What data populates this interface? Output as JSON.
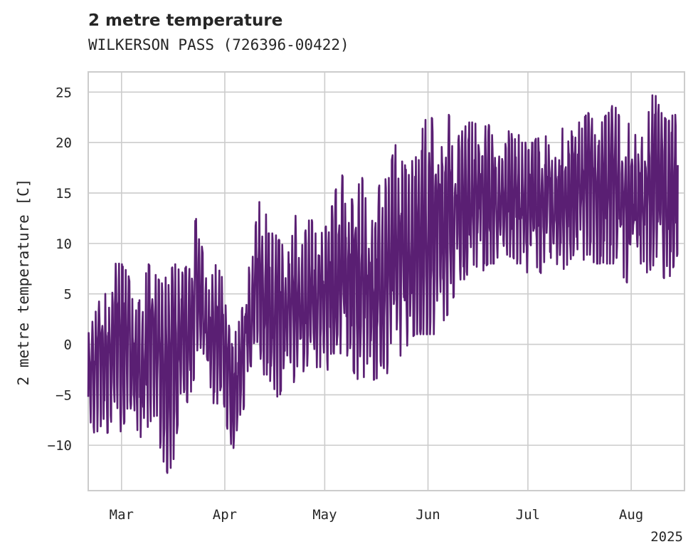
{
  "chart_data": {
    "type": "line",
    "title": "2 metre temperature",
    "subtitle": "WILKERSON PASS (726396-00422)",
    "ylabel": "2 metre temperature [C]",
    "xlabel": "",
    "x_year_label": "2025",
    "ylim": [
      -14.5,
      27
    ],
    "yticks": [
      -10,
      -5,
      0,
      5,
      10,
      15,
      20,
      25
    ],
    "xlim": [
      "2025-02-19",
      "2025-08-17"
    ],
    "xticks": [
      {
        "date": "2025-03-01",
        "label": "Mar"
      },
      {
        "date": "2025-04-01",
        "label": "Apr"
      },
      {
        "date": "2025-05-01",
        "label": "May"
      },
      {
        "date": "2025-06-01",
        "label": "Jun"
      },
      {
        "date": "2025-07-01",
        "label": "Jul"
      },
      {
        "date": "2025-08-01",
        "label": "Aug"
      }
    ],
    "grid": true,
    "line_color": "#5a1f73",
    "series": [
      {
        "name": "",
        "x": [
          "2025-02-19",
          "2025-02-21",
          "2025-02-23",
          "2025-02-25",
          "2025-02-27",
          "2025-03-01",
          "2025-03-03",
          "2025-03-05",
          "2025-03-07",
          "2025-03-09",
          "2025-03-11",
          "2025-03-13",
          "2025-03-15",
          "2025-03-17",
          "2025-03-19",
          "2025-03-21",
          "2025-03-23",
          "2025-03-25",
          "2025-03-27",
          "2025-03-29",
          "2025-03-31",
          "2025-04-02",
          "2025-04-04",
          "2025-04-06",
          "2025-04-08",
          "2025-04-10",
          "2025-04-12",
          "2025-04-14",
          "2025-04-16",
          "2025-04-18",
          "2025-04-20",
          "2025-04-22",
          "2025-04-24",
          "2025-04-26",
          "2025-04-28",
          "2025-04-30",
          "2025-05-02",
          "2025-05-04",
          "2025-05-06",
          "2025-05-08",
          "2025-05-10",
          "2025-05-12",
          "2025-05-14",
          "2025-05-16",
          "2025-05-18",
          "2025-05-20",
          "2025-05-22",
          "2025-05-24",
          "2025-05-26",
          "2025-05-28",
          "2025-05-30",
          "2025-06-01",
          "2025-06-03",
          "2025-06-05",
          "2025-06-07",
          "2025-06-09",
          "2025-06-11",
          "2025-06-13",
          "2025-06-15",
          "2025-06-17",
          "2025-06-19",
          "2025-06-21",
          "2025-06-23",
          "2025-06-25",
          "2025-06-27",
          "2025-06-29",
          "2025-07-01",
          "2025-07-03",
          "2025-07-05",
          "2025-07-07",
          "2025-07-09",
          "2025-07-11",
          "2025-07-13",
          "2025-07-15",
          "2025-07-17",
          "2025-07-19",
          "2025-07-21",
          "2025-07-23",
          "2025-07-25",
          "2025-07-27",
          "2025-07-29",
          "2025-07-31",
          "2025-08-02",
          "2025-08-04",
          "2025-08-06",
          "2025-08-08",
          "2025-08-10",
          "2025-08-12",
          "2025-08-14",
          "2025-08-15"
        ],
        "min": [
          -7,
          -9,
          -8,
          -9,
          -6,
          -9,
          -6,
          -7,
          -11,
          -8,
          -7,
          -11,
          -13,
          -11,
          -4,
          -6,
          -3,
          -2,
          -5,
          -7,
          -4,
          -9,
          -11,
          -8,
          -3,
          -2,
          -3,
          -3,
          -6,
          -6,
          -2,
          -4,
          -3,
          -2,
          -4,
          -2,
          -3,
          -1,
          -2,
          -1,
          -3,
          -4,
          -2,
          -4,
          -2,
          -3,
          -2,
          -1,
          0,
          1,
          1,
          1,
          1,
          2,
          3,
          5,
          6,
          7,
          8,
          7,
          8,
          8,
          8,
          9,
          8,
          8,
          7,
          8,
          7,
          9,
          8,
          7,
          8,
          9,
          8,
          9,
          8,
          8,
          8,
          8,
          7,
          6,
          8,
          8,
          7,
          8,
          7,
          6,
          8,
          9
        ],
        "max": [
          1,
          3,
          5,
          5,
          8,
          8,
          7,
          3,
          5,
          8,
          7,
          6,
          7,
          8,
          7,
          8,
          13,
          10,
          5,
          8,
          7,
          2,
          1,
          3,
          8,
          11,
          17,
          11,
          11,
          10,
          9,
          13,
          11,
          14,
          11,
          11,
          12,
          15,
          17,
          15,
          14,
          17,
          13,
          13,
          17,
          16,
          20,
          18,
          19,
          18,
          21,
          23,
          22,
          20,
          23,
          21,
          21,
          22,
          22,
          21,
          22,
          20,
          18,
          21,
          22,
          20,
          20,
          20,
          22,
          20,
          18,
          22,
          20,
          22,
          22,
          23,
          22,
          22,
          23,
          24,
          22,
          22,
          21,
          20,
          24,
          25,
          23,
          22,
          23,
          22
        ]
      }
    ]
  }
}
